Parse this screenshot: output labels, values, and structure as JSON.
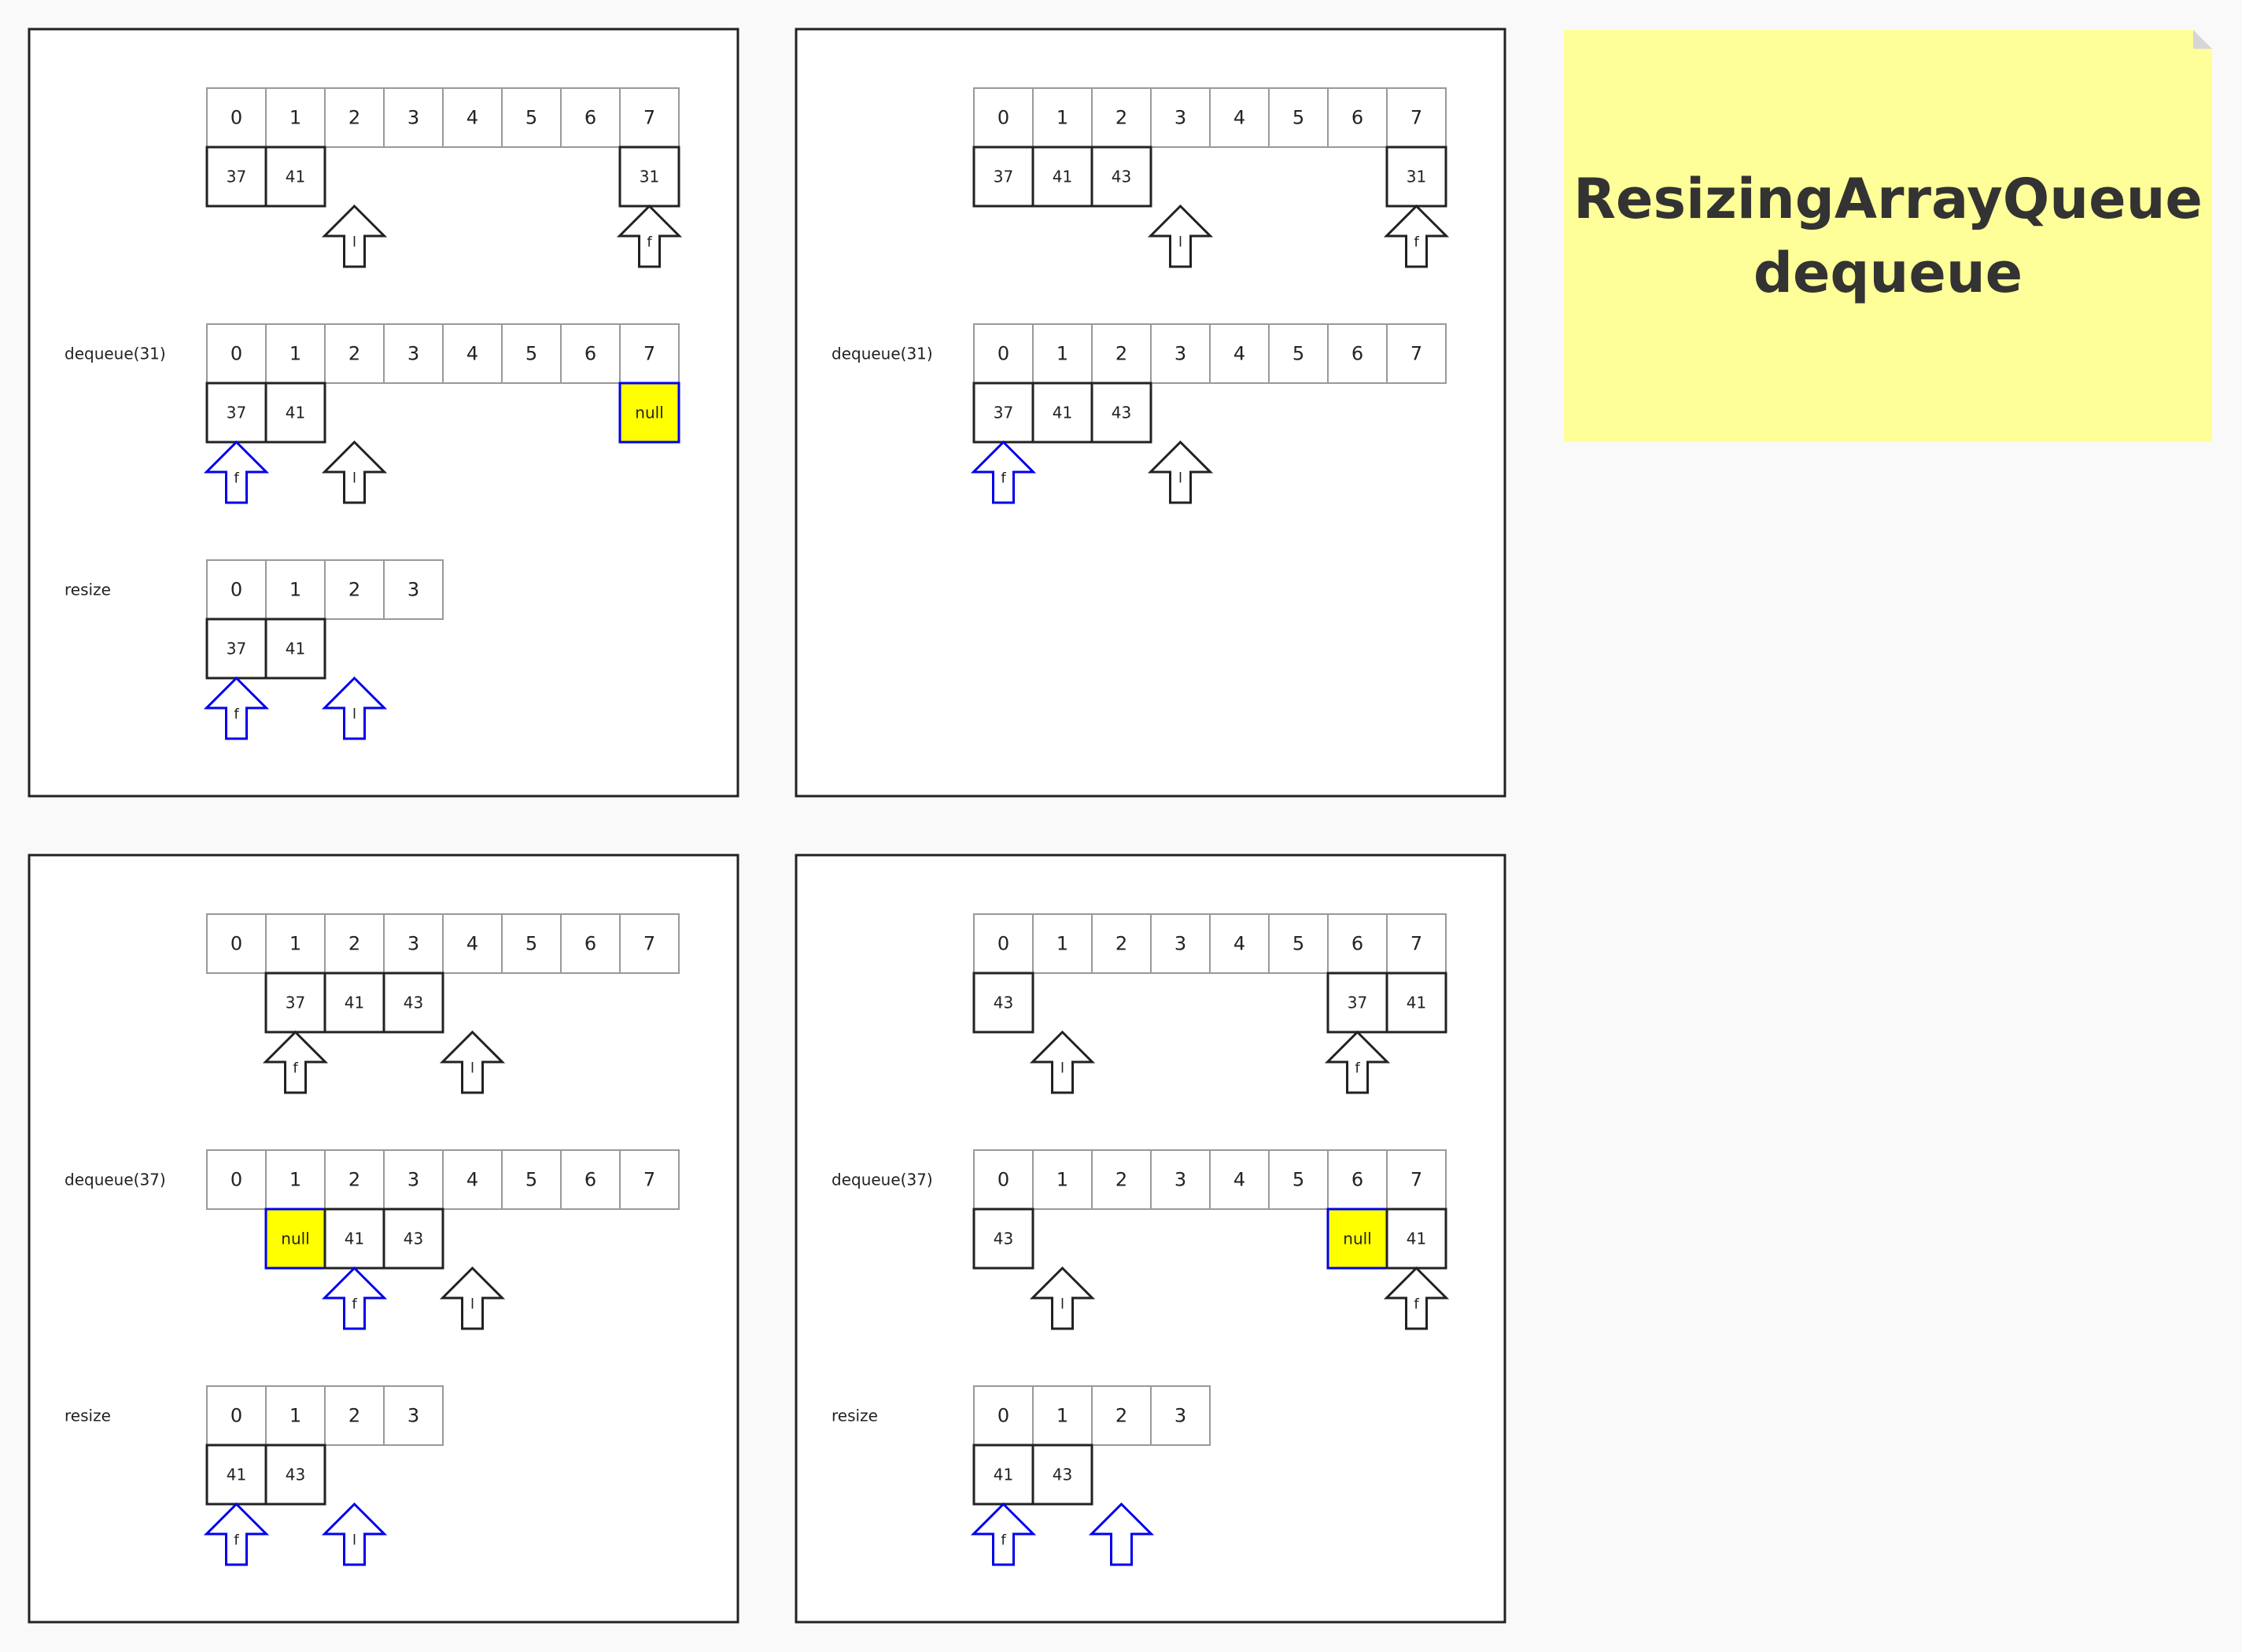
{
  "note": {
    "title_line1": "ResizingArrayQueue",
    "title_line2": "dequeue",
    "color": "#ffff99"
  },
  "colors": {
    "pointer_black": "#222222",
    "pointer_blue": "#0000ee",
    "highlight_fill": "#ffff00",
    "index_border": "#999999",
    "cell_border": "#222222"
  },
  "panels": [
    {
      "steps": [
        {
          "label": "",
          "indices": [
            "0",
            "1",
            "2",
            "3",
            "4",
            "5",
            "6",
            "7"
          ],
          "cells": [
            {
              "index": 0,
              "value": "37"
            },
            {
              "index": 1,
              "value": "41"
            },
            {
              "index": 7,
              "value": "31"
            }
          ],
          "pointers": [
            {
              "index": 2,
              "label": "l",
              "color": "black"
            },
            {
              "index": 7,
              "label": "f",
              "color": "black"
            }
          ]
        },
        {
          "label": "dequeue(31)",
          "indices": [
            "0",
            "1",
            "2",
            "3",
            "4",
            "5",
            "6",
            "7"
          ],
          "cells": [
            {
              "index": 0,
              "value": "37"
            },
            {
              "index": 1,
              "value": "41"
            },
            {
              "index": 7,
              "value": "null",
              "highlight": true
            }
          ],
          "pointers": [
            {
              "index": 0,
              "label": "f",
              "color": "blue"
            },
            {
              "index": 2,
              "label": "l",
              "color": "black"
            }
          ]
        },
        {
          "label": "resize",
          "indices": [
            "0",
            "1",
            "2",
            "3"
          ],
          "cells": [
            {
              "index": 0,
              "value": "37"
            },
            {
              "index": 1,
              "value": "41"
            }
          ],
          "pointers": [
            {
              "index": 0,
              "label": "f",
              "color": "blue"
            },
            {
              "index": 2,
              "label": "l",
              "color": "blue"
            }
          ]
        }
      ]
    },
    {
      "steps": [
        {
          "label": "",
          "indices": [
            "0",
            "1",
            "2",
            "3",
            "4",
            "5",
            "6",
            "7"
          ],
          "cells": [
            {
              "index": 0,
              "value": "37"
            },
            {
              "index": 1,
              "value": "41"
            },
            {
              "index": 2,
              "value": "43"
            },
            {
              "index": 7,
              "value": "31"
            }
          ],
          "pointers": [
            {
              "index": 3,
              "label": "l",
              "color": "black"
            },
            {
              "index": 7,
              "label": "f",
              "color": "black"
            }
          ]
        },
        {
          "label": "dequeue(31)",
          "indices": [
            "0",
            "1",
            "2",
            "3",
            "4",
            "5",
            "6",
            "7"
          ],
          "cells": [
            {
              "index": 0,
              "value": "37"
            },
            {
              "index": 1,
              "value": "41"
            },
            {
              "index": 2,
              "value": "43"
            }
          ],
          "pointers": [
            {
              "index": 0,
              "label": "f",
              "color": "blue"
            },
            {
              "index": 3,
              "label": "l",
              "color": "black"
            }
          ]
        }
      ]
    },
    {
      "steps": [
        {
          "label": "",
          "indices": [
            "0",
            "1",
            "2",
            "3",
            "4",
            "5",
            "6",
            "7"
          ],
          "cells": [
            {
              "index": 1,
              "value": "37"
            },
            {
              "index": 2,
              "value": "41"
            },
            {
              "index": 3,
              "value": "43"
            }
          ],
          "pointers": [
            {
              "index": 1,
              "label": "f",
              "color": "black"
            },
            {
              "index": 4,
              "label": "l",
              "color": "black"
            }
          ]
        },
        {
          "label": "dequeue(37)",
          "indices": [
            "0",
            "1",
            "2",
            "3",
            "4",
            "5",
            "6",
            "7"
          ],
          "cells": [
            {
              "index": 1,
              "value": "null",
              "highlight": true
            },
            {
              "index": 2,
              "value": "41"
            },
            {
              "index": 3,
              "value": "43"
            }
          ],
          "pointers": [
            {
              "index": 2,
              "label": "f",
              "color": "blue"
            },
            {
              "index": 4,
              "label": "l",
              "color": "black"
            }
          ]
        },
        {
          "label": "resize",
          "indices": [
            "0",
            "1",
            "2",
            "3"
          ],
          "cells": [
            {
              "index": 0,
              "value": "41"
            },
            {
              "index": 1,
              "value": "43"
            }
          ],
          "pointers": [
            {
              "index": 0,
              "label": "f",
              "color": "blue"
            },
            {
              "index": 2,
              "label": "l",
              "color": "blue"
            }
          ]
        }
      ]
    },
    {
      "steps": [
        {
          "label": "",
          "indices": [
            "0",
            "1",
            "2",
            "3",
            "4",
            "5",
            "6",
            "7"
          ],
          "cells": [
            {
              "index": 0,
              "value": "43"
            },
            {
              "index": 6,
              "value": "37"
            },
            {
              "index": 7,
              "value": "41"
            }
          ],
          "pointers": [
            {
              "index": 1,
              "label": "l",
              "color": "black"
            },
            {
              "index": 6,
              "label": "f",
              "color": "black"
            }
          ]
        },
        {
          "label": "dequeue(37)",
          "indices": [
            "0",
            "1",
            "2",
            "3",
            "4",
            "5",
            "6",
            "7"
          ],
          "cells": [
            {
              "index": 0,
              "value": "43"
            },
            {
              "index": 6,
              "value": "null",
              "highlight": true
            },
            {
              "index": 7,
              "value": "41"
            }
          ],
          "pointers": [
            {
              "index": 1,
              "label": "l",
              "color": "black"
            },
            {
              "index": 7,
              "label": "f",
              "color": "black"
            }
          ]
        },
        {
          "label": "resize",
          "indices": [
            "0",
            "1",
            "2",
            "3"
          ],
          "cells": [
            {
              "index": 0,
              "value": "41"
            },
            {
              "index": 1,
              "value": "43"
            }
          ],
          "pointers": [
            {
              "index": 0,
              "label": "f",
              "color": "blue"
            },
            {
              "index": 2,
              "label": "",
              "color": "blue"
            }
          ]
        }
      ]
    }
  ]
}
